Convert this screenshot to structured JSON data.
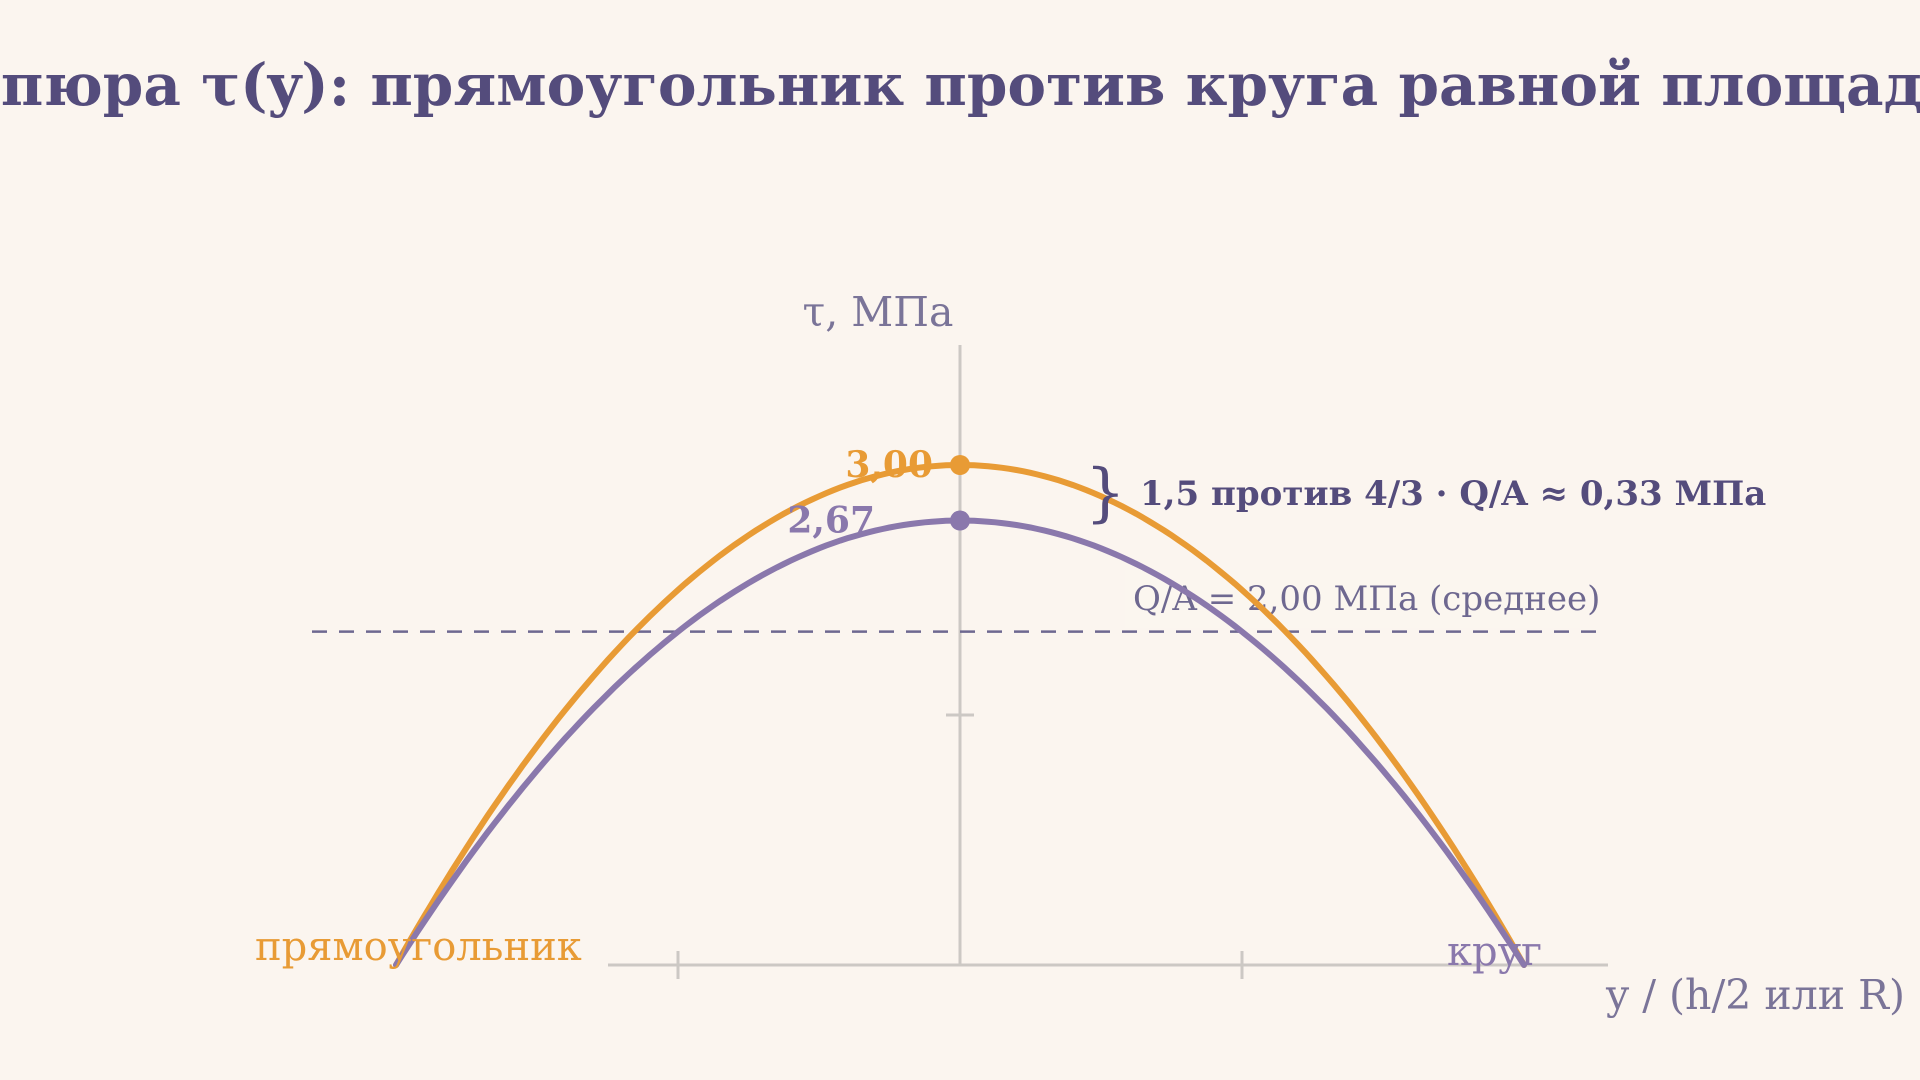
{
  "chart_data": {
    "type": "line",
    "title": "Эпюра τ(y): прямоугольник против круга равной площади",
    "ylabel": "τ, МПа",
    "xlabel": "y / (h/2 или R)",
    "xlim": [
      -1,
      1
    ],
    "ylim": [
      0,
      3
    ],
    "x_ticks": [
      -0.5,
      0,
      0.5
    ],
    "y_ticks": [
      1.5
    ],
    "grid": false,
    "series": [
      {
        "name": "прямоугольник",
        "color": "#E89B35",
        "x": [
          -1,
          -0.75,
          -0.5,
          -0.25,
          0,
          0.25,
          0.5,
          0.75,
          1
        ],
        "y": [
          0,
          1.3125,
          2.25,
          2.8125,
          3.0,
          2.8125,
          2.25,
          1.3125,
          0
        ],
        "peak_label": "3,00"
      },
      {
        "name": "круг",
        "color": "#8A78AC",
        "x": [
          -1,
          -0.75,
          -0.5,
          -0.25,
          0,
          0.25,
          0.5,
          0.75,
          1
        ],
        "y": [
          0,
          1.1667,
          2.0,
          2.5,
          2.6667,
          2.5,
          2.0,
          1.1667,
          0
        ],
        "peak_label": "2,67"
      }
    ],
    "reference_line": {
      "y": 2.0,
      "label": "Q/A = 2,00 МПа (среднее)",
      "color": "#6E6890"
    },
    "annotations": {
      "peak_difference": "1,5 против 4/3 · Q/A  ≈  0,33 МПа",
      "brace": "}"
    },
    "colors": {
      "title": "#544C7C",
      "axis": "#CCC8C4",
      "axis_label": "#7A7498",
      "background": "#FBF5EF"
    }
  }
}
